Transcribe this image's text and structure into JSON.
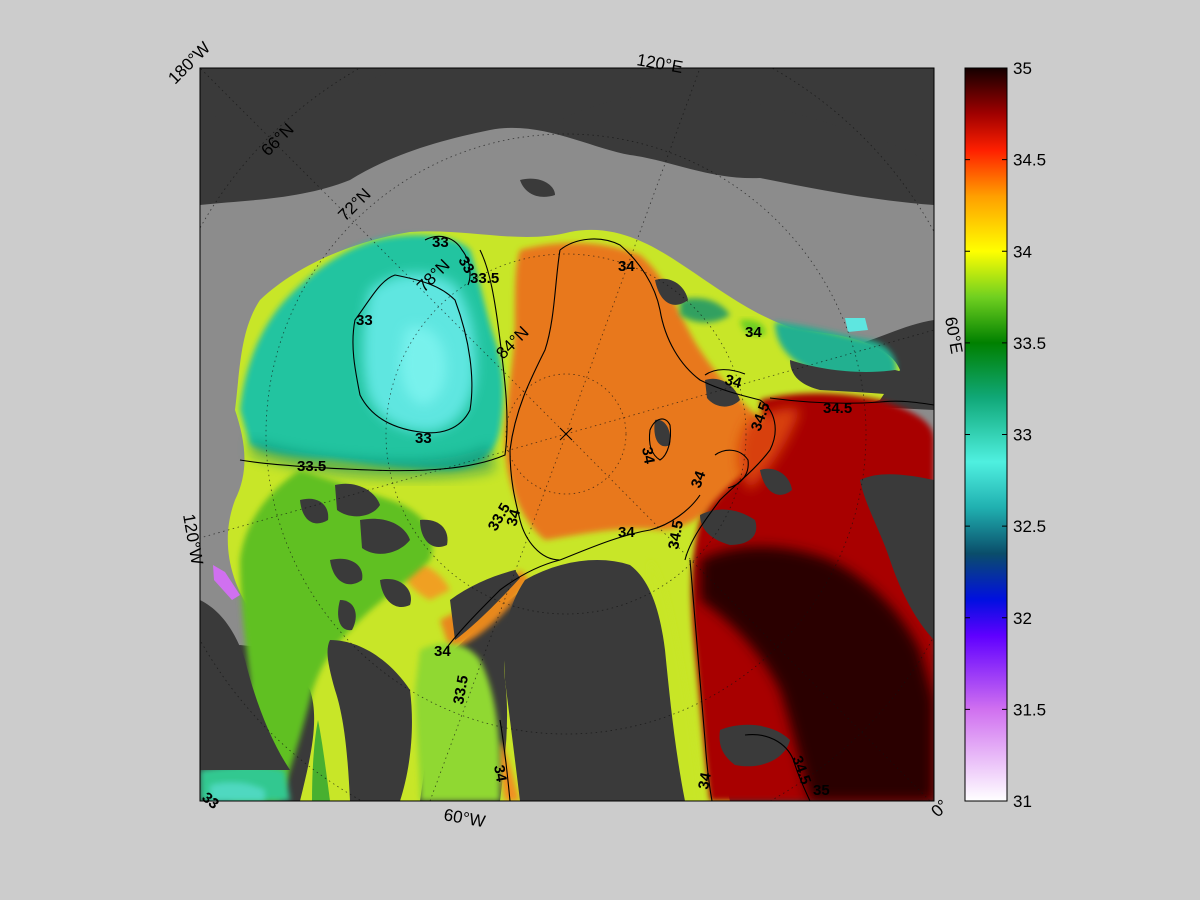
{
  "map": {
    "longitude_labels": [
      "180°W",
      "120°E",
      "60°E",
      "120°W",
      "60°W",
      "0°"
    ],
    "latitude_labels": [
      "66°N",
      "72°N",
      "78°N",
      "84°N"
    ],
    "contour_labels": [
      "33",
      "33",
      "33.5",
      "33",
      "33",
      "33.5",
      "33.5",
      "34",
      "34",
      "34",
      "34",
      "34.5",
      "34.5",
      "34",
      "34",
      "34",
      "34.5",
      "34",
      "33.5",
      "34",
      "34",
      "34.5",
      "35",
      "33"
    ],
    "colors": {
      "background": "#cccccc",
      "land": "#3a3a3a",
      "shelf_no_data": "#8c8c8c",
      "fresh_basin": "#20c4a0",
      "freshest_core": "#5ee6e0",
      "intermediate": "#c8e628",
      "atlantic_water": "#e8781e",
      "salty_inflow": "#a80000",
      "saltiest": "#280000"
    }
  },
  "colorbar": {
    "ticks": [
      "35",
      "34.5",
      "34",
      "33.5",
      "33",
      "32.5",
      "32",
      "31.5",
      "31"
    ],
    "range": [
      31,
      35
    ],
    "gradient_stops": [
      {
        "value": 31.0,
        "color": "#ffffff"
      },
      {
        "value": 31.5,
        "color": "#d070f0"
      },
      {
        "value": 31.9,
        "color": "#6000ff"
      },
      {
        "value": 32.1,
        "color": "#0010e0"
      },
      {
        "value": 32.35,
        "color": "#0a4d6a"
      },
      {
        "value": 32.6,
        "color": "#20b0b0"
      },
      {
        "value": 32.85,
        "color": "#4ff0e0"
      },
      {
        "value": 33.2,
        "color": "#10a878"
      },
      {
        "value": 33.5,
        "color": "#008000"
      },
      {
        "value": 33.75,
        "color": "#70d020"
      },
      {
        "value": 34.0,
        "color": "#ffff00"
      },
      {
        "value": 34.3,
        "color": "#ff9f00"
      },
      {
        "value": 34.55,
        "color": "#ff2000"
      },
      {
        "value": 34.75,
        "color": "#a00000"
      },
      {
        "value": 35.0,
        "color": "#140000"
      }
    ]
  }
}
